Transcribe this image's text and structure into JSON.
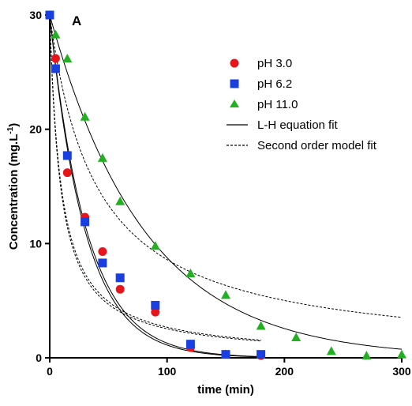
{
  "chart_data": {
    "type": "scatter",
    "panel_label": "A",
    "xlabel": "time (min)",
    "ylabel_main": "Concentration (mg.L",
    "ylabel_sup": "-1",
    "ylabel_close": ")",
    "xlim": [
      0,
      300
    ],
    "ylim": [
      0,
      30
    ],
    "xticks": [
      0,
      100,
      200,
      300
    ],
    "yticks": [
      0,
      10,
      20,
      30
    ],
    "legend_position": "top-right",
    "grid": false,
    "series": [
      {
        "name": "pH 3.0",
        "marker": "circle",
        "color": "#e8141b",
        "x": [
          0,
          5,
          15,
          30,
          45,
          60,
          90,
          120,
          150,
          180
        ],
        "y": [
          30.0,
          26.2,
          16.2,
          12.3,
          9.3,
          6.0,
          4.0,
          0.9,
          0.3,
          0.2
        ]
      },
      {
        "name": "pH 6.2",
        "marker": "square",
        "color": "#1a3fe0",
        "x": [
          0,
          5,
          15,
          30,
          45,
          60,
          90,
          120,
          150,
          180
        ],
        "y": [
          30.0,
          25.3,
          17.7,
          11.9,
          8.3,
          7.0,
          4.6,
          1.2,
          0.3,
          0.3
        ]
      },
      {
        "name": "pH 11.0",
        "marker": "triangle",
        "color": "#22b022",
        "x": [
          5,
          15,
          30,
          45,
          60,
          90,
          120,
          150,
          180,
          210,
          240,
          270,
          300
        ],
        "y": [
          28.3,
          26.2,
          21.1,
          17.5,
          13.7,
          9.8,
          7.4,
          5.5,
          2.8,
          1.8,
          0.6,
          0.2,
          0.3
        ]
      }
    ],
    "fits": [
      {
        "name": "L-H equation fit",
        "style": "solid"
      },
      {
        "name": "Second order model fit",
        "style": "dashed"
      }
    ],
    "fit_curves": [
      {
        "style": "solid",
        "model": "exp",
        "c0": 30.0,
        "k": 0.0329,
        "xmax": 180
      },
      {
        "style": "solid",
        "model": "exp",
        "c0": 30.0,
        "k": 0.0315,
        "xmax": 180
      },
      {
        "style": "solid",
        "model": "exp",
        "c0": 30.0,
        "k": 0.0123,
        "xmax": 300
      },
      {
        "style": "dashed",
        "model": "second_order",
        "c0": 30.0,
        "k": 0.0036,
        "xmax": 180
      },
      {
        "style": "dashed",
        "model": "second_order",
        "c0": 30.0,
        "k": 0.0034,
        "xmax": 180
      },
      {
        "style": "dashed",
        "model": "second_order",
        "c0": 30.0,
        "k": 0.00083,
        "xmax": 300
      }
    ]
  }
}
